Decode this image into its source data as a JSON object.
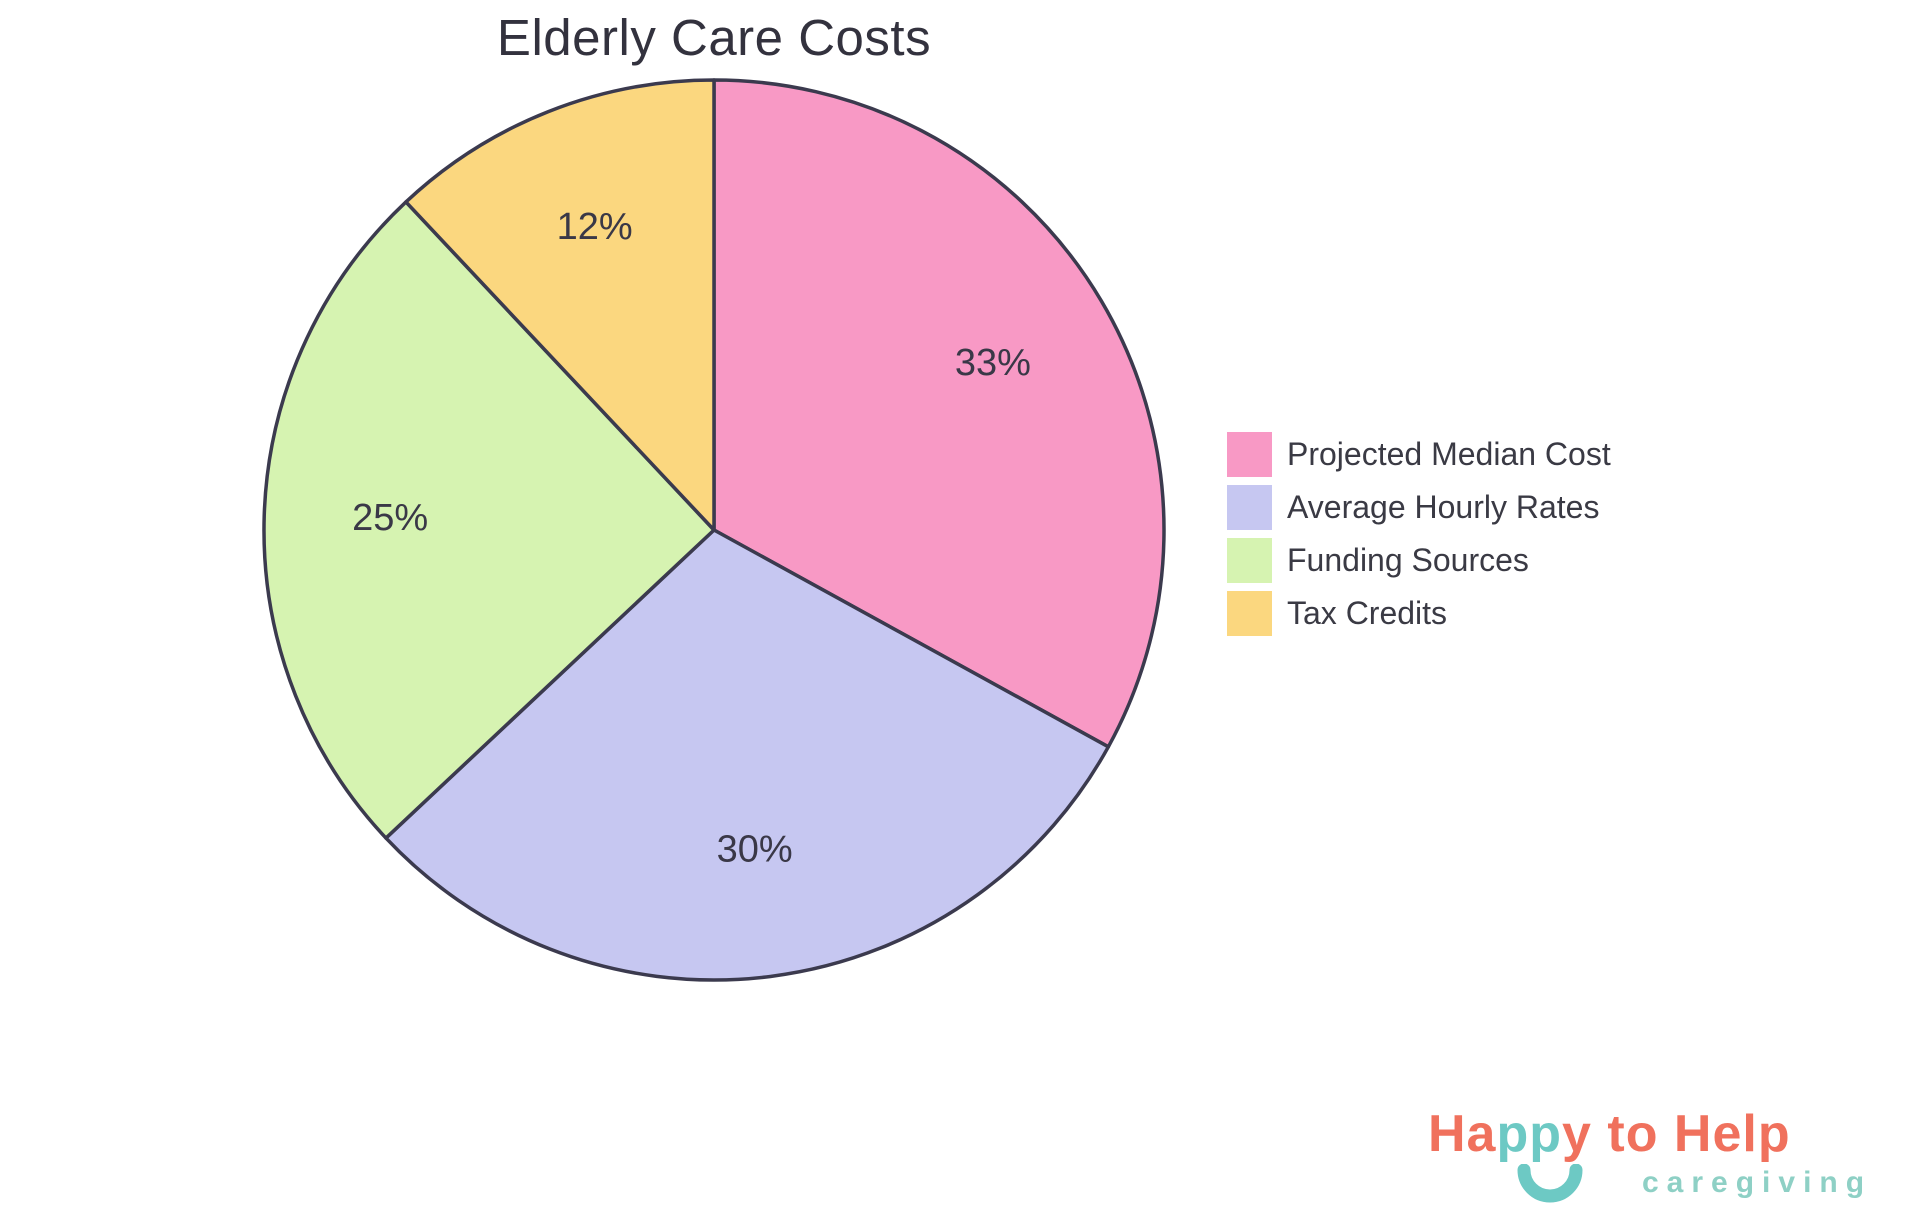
{
  "chart_data": {
    "type": "pie",
    "title": "Elderly Care Costs",
    "categories": [
      "Projected Median Cost",
      "Average Hourly Rates",
      "Funding Sources",
      "Tax Credits"
    ],
    "values": [
      33,
      30,
      25,
      12
    ],
    "slice_labels": [
      "33%",
      "30%",
      "25%",
      "12%"
    ],
    "colors": [
      "#F899C5",
      "#C6C7F1",
      "#D6F3B1",
      "#FBD77F"
    ],
    "start_angle_deg": 0,
    "direction": "clockwise",
    "stroke_color": "#3B3A4E",
    "stroke_width": 3.5,
    "label_color": "#3A3847",
    "label_radius_fraction": 0.72,
    "legend_position": "right",
    "background": "#ffffff"
  },
  "logo": {
    "line1_parts": [
      {
        "text": "Ha",
        "color": "#F0715D"
      },
      {
        "text": "pp",
        "color": "#6DC9C4"
      },
      {
        "text": "y to Help",
        "color": "#F0715D"
      }
    ],
    "tagline": "caregiving",
    "tagline_color": "#8ED0C5",
    "smile_color": "#6DC9C4"
  }
}
